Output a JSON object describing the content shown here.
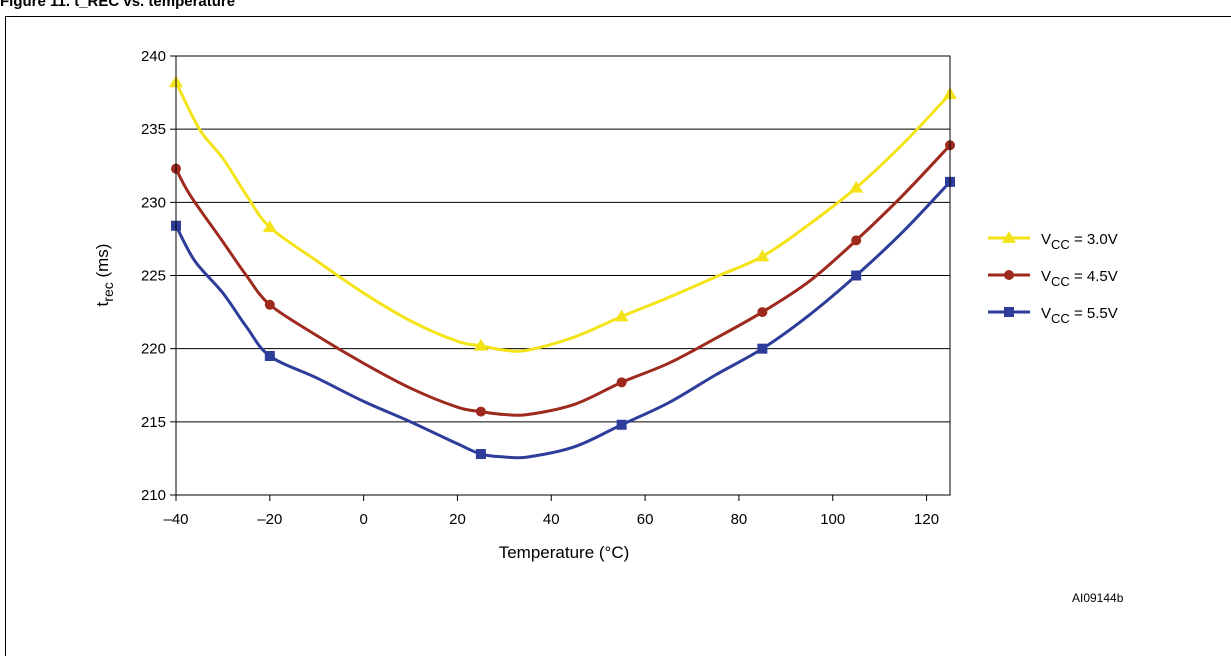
{
  "figure": {
    "caption": "Figure 11. t_REC vs. temperature",
    "id_label": "AI09144b"
  },
  "chart_data": {
    "type": "line",
    "title": "",
    "xlabel": "Temperature (°C)",
    "ylabel": "t_rec (ms)",
    "xlim": [
      -40,
      125
    ],
    "ylim": [
      210,
      240
    ],
    "xticks": [
      -40,
      -20,
      0,
      20,
      40,
      60,
      80,
      100,
      120
    ],
    "xtick_labels": [
      "–40",
      "–20",
      "0",
      "20",
      "40",
      "60",
      "80",
      "100",
      "120"
    ],
    "yticks": [
      210,
      215,
      220,
      225,
      230,
      235,
      240
    ],
    "grid": "horizontal",
    "legend_position": "right",
    "series": [
      {
        "name": "VCC = 3.0V",
        "name_main": "V",
        "name_sub": "CC",
        "name_rest": " = 3.0V",
        "color": "#f5e31a",
        "marker": "triangle",
        "markers": [
          [
            -40,
            238.2
          ],
          [
            -20,
            228.3
          ],
          [
            25,
            220.2
          ],
          [
            55,
            222.2
          ],
          [
            85,
            226.3
          ],
          [
            105,
            231.0
          ],
          [
            125,
            237.4
          ]
        ],
        "curve": [
          [
            -40,
            238.2
          ],
          [
            -35,
            235.0
          ],
          [
            -30,
            233.0
          ],
          [
            -25,
            230.5
          ],
          [
            -20,
            228.3
          ],
          [
            -10,
            226.0
          ],
          [
            0,
            223.8
          ],
          [
            10,
            221.9
          ],
          [
            20,
            220.5
          ],
          [
            25,
            220.2
          ],
          [
            30,
            219.9
          ],
          [
            35,
            219.9
          ],
          [
            45,
            220.8
          ],
          [
            55,
            222.2
          ],
          [
            65,
            223.5
          ],
          [
            75,
            224.9
          ],
          [
            85,
            226.3
          ],
          [
            95,
            228.5
          ],
          [
            105,
            231.0
          ],
          [
            115,
            234.0
          ],
          [
            125,
            237.4
          ]
        ]
      },
      {
        "name": "VCC = 4.5V",
        "name_main": "V",
        "name_sub": "CC",
        "name_rest": " = 4.5V",
        "color": "#9e2a1e",
        "marker": "circle",
        "markers": [
          [
            -40,
            232.3
          ],
          [
            -20,
            223.0
          ],
          [
            25,
            215.7
          ],
          [
            55,
            217.7
          ],
          [
            85,
            222.5
          ],
          [
            105,
            227.4
          ],
          [
            125,
            233.9
          ]
        ],
        "curve": [
          [
            -40,
            232.3
          ],
          [
            -37,
            230.5
          ],
          [
            -30,
            227.3
          ],
          [
            -25,
            225.0
          ],
          [
            -20,
            223.0
          ],
          [
            -10,
            220.9
          ],
          [
            0,
            219.0
          ],
          [
            10,
            217.3
          ],
          [
            20,
            216.0
          ],
          [
            25,
            215.7
          ],
          [
            30,
            215.5
          ],
          [
            35,
            215.5
          ],
          [
            45,
            216.2
          ],
          [
            55,
            217.7
          ],
          [
            65,
            219.0
          ],
          [
            75,
            220.7
          ],
          [
            85,
            222.5
          ],
          [
            95,
            224.6
          ],
          [
            105,
            227.4
          ],
          [
            115,
            230.5
          ],
          [
            125,
            233.9
          ]
        ]
      },
      {
        "name": "VCC = 5.5V",
        "name_main": "V",
        "name_sub": "CC",
        "name_rest": " = 5.5V",
        "color": "#2e3d9a",
        "marker": "square",
        "markers": [
          [
            -40,
            228.4
          ],
          [
            -20,
            219.5
          ],
          [
            25,
            212.8
          ],
          [
            55,
            214.8
          ],
          [
            85,
            220.0
          ],
          [
            105,
            225.0
          ],
          [
            125,
            231.4
          ]
        ],
        "curve": [
          [
            -40,
            228.4
          ],
          [
            -36,
            226.0
          ],
          [
            -30,
            223.8
          ],
          [
            -25,
            221.5
          ],
          [
            -20,
            219.5
          ],
          [
            -10,
            218.0
          ],
          [
            0,
            216.4
          ],
          [
            10,
            215.0
          ],
          [
            20,
            213.5
          ],
          [
            25,
            212.8
          ],
          [
            30,
            212.6
          ],
          [
            35,
            212.6
          ],
          [
            45,
            213.3
          ],
          [
            55,
            214.8
          ],
          [
            65,
            216.3
          ],
          [
            75,
            218.2
          ],
          [
            85,
            220.0
          ],
          [
            95,
            222.3
          ],
          [
            105,
            225.0
          ],
          [
            115,
            228.0
          ],
          [
            125,
            231.4
          ]
        ]
      }
    ]
  }
}
